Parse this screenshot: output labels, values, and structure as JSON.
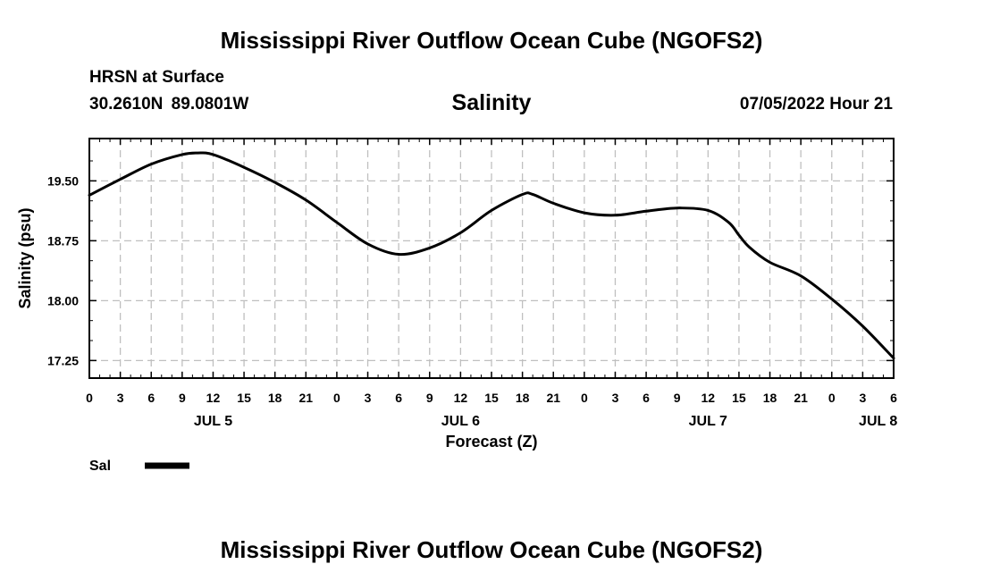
{
  "header": {
    "title": "Mississippi River Outflow Ocean Cube (NGOFS2)",
    "station": "HRSN at Surface",
    "coords": "30.2610N  89.0801W",
    "date_time": "07/05/2022 Hour 21"
  },
  "footer": {
    "title": "Mississippi River Outflow Ocean Cube (NGOFS2)"
  },
  "chart_data": {
    "type": "line",
    "title": "Salinity",
    "xlabel": "Forecast (Z)",
    "ylabel": "Salinity (psu)",
    "xlim": [
      0,
      78
    ],
    "ylim": [
      17.03,
      20.03
    ],
    "grid": true,
    "x_tick_hours": [
      0,
      3,
      6,
      9,
      12,
      15,
      18,
      21,
      24,
      27,
      30,
      33,
      36,
      39,
      42,
      45,
      48,
      51,
      54,
      57,
      60,
      63,
      66,
      69,
      72,
      75,
      78
    ],
    "x_tick_labels": [
      "0",
      "3",
      "6",
      "9",
      "12",
      "15",
      "18",
      "21",
      "0",
      "3",
      "6",
      "9",
      "12",
      "15",
      "18",
      "21",
      "0",
      "3",
      "6",
      "9",
      "12",
      "15",
      "18",
      "21",
      "0",
      "3",
      "6"
    ],
    "y_ticks": [
      17.25,
      18.0,
      18.75,
      19.5
    ],
    "y_tick_labels": [
      "17.25",
      "18.00",
      "18.75",
      "19.50"
    ],
    "day_labels": [
      {
        "hour": 12,
        "text": "JUL 5"
      },
      {
        "hour": 36,
        "text": "JUL 6"
      },
      {
        "hour": 60,
        "text": "JUL 7"
      },
      {
        "hour": 76.5,
        "text": "JUL 8"
      }
    ],
    "series": [
      {
        "name": "Sal",
        "color": "#000000",
        "x": [
          0,
          3,
          6,
          9,
          10.5,
          12,
          15,
          18,
          21,
          24,
          27,
          30,
          33,
          36,
          39,
          42,
          43,
          45,
          48,
          51,
          54,
          57,
          60,
          62,
          63,
          64,
          66,
          69,
          72,
          75,
          78
        ],
        "values": [
          19.32,
          19.52,
          19.71,
          19.83,
          19.85,
          19.83,
          19.67,
          19.48,
          19.26,
          18.98,
          18.71,
          18.58,
          18.66,
          18.85,
          19.13,
          19.33,
          19.33,
          19.22,
          19.1,
          19.07,
          19.12,
          19.16,
          19.13,
          18.98,
          18.82,
          18.67,
          18.48,
          18.31,
          18.02,
          17.68,
          17.28
        ]
      }
    ]
  }
}
